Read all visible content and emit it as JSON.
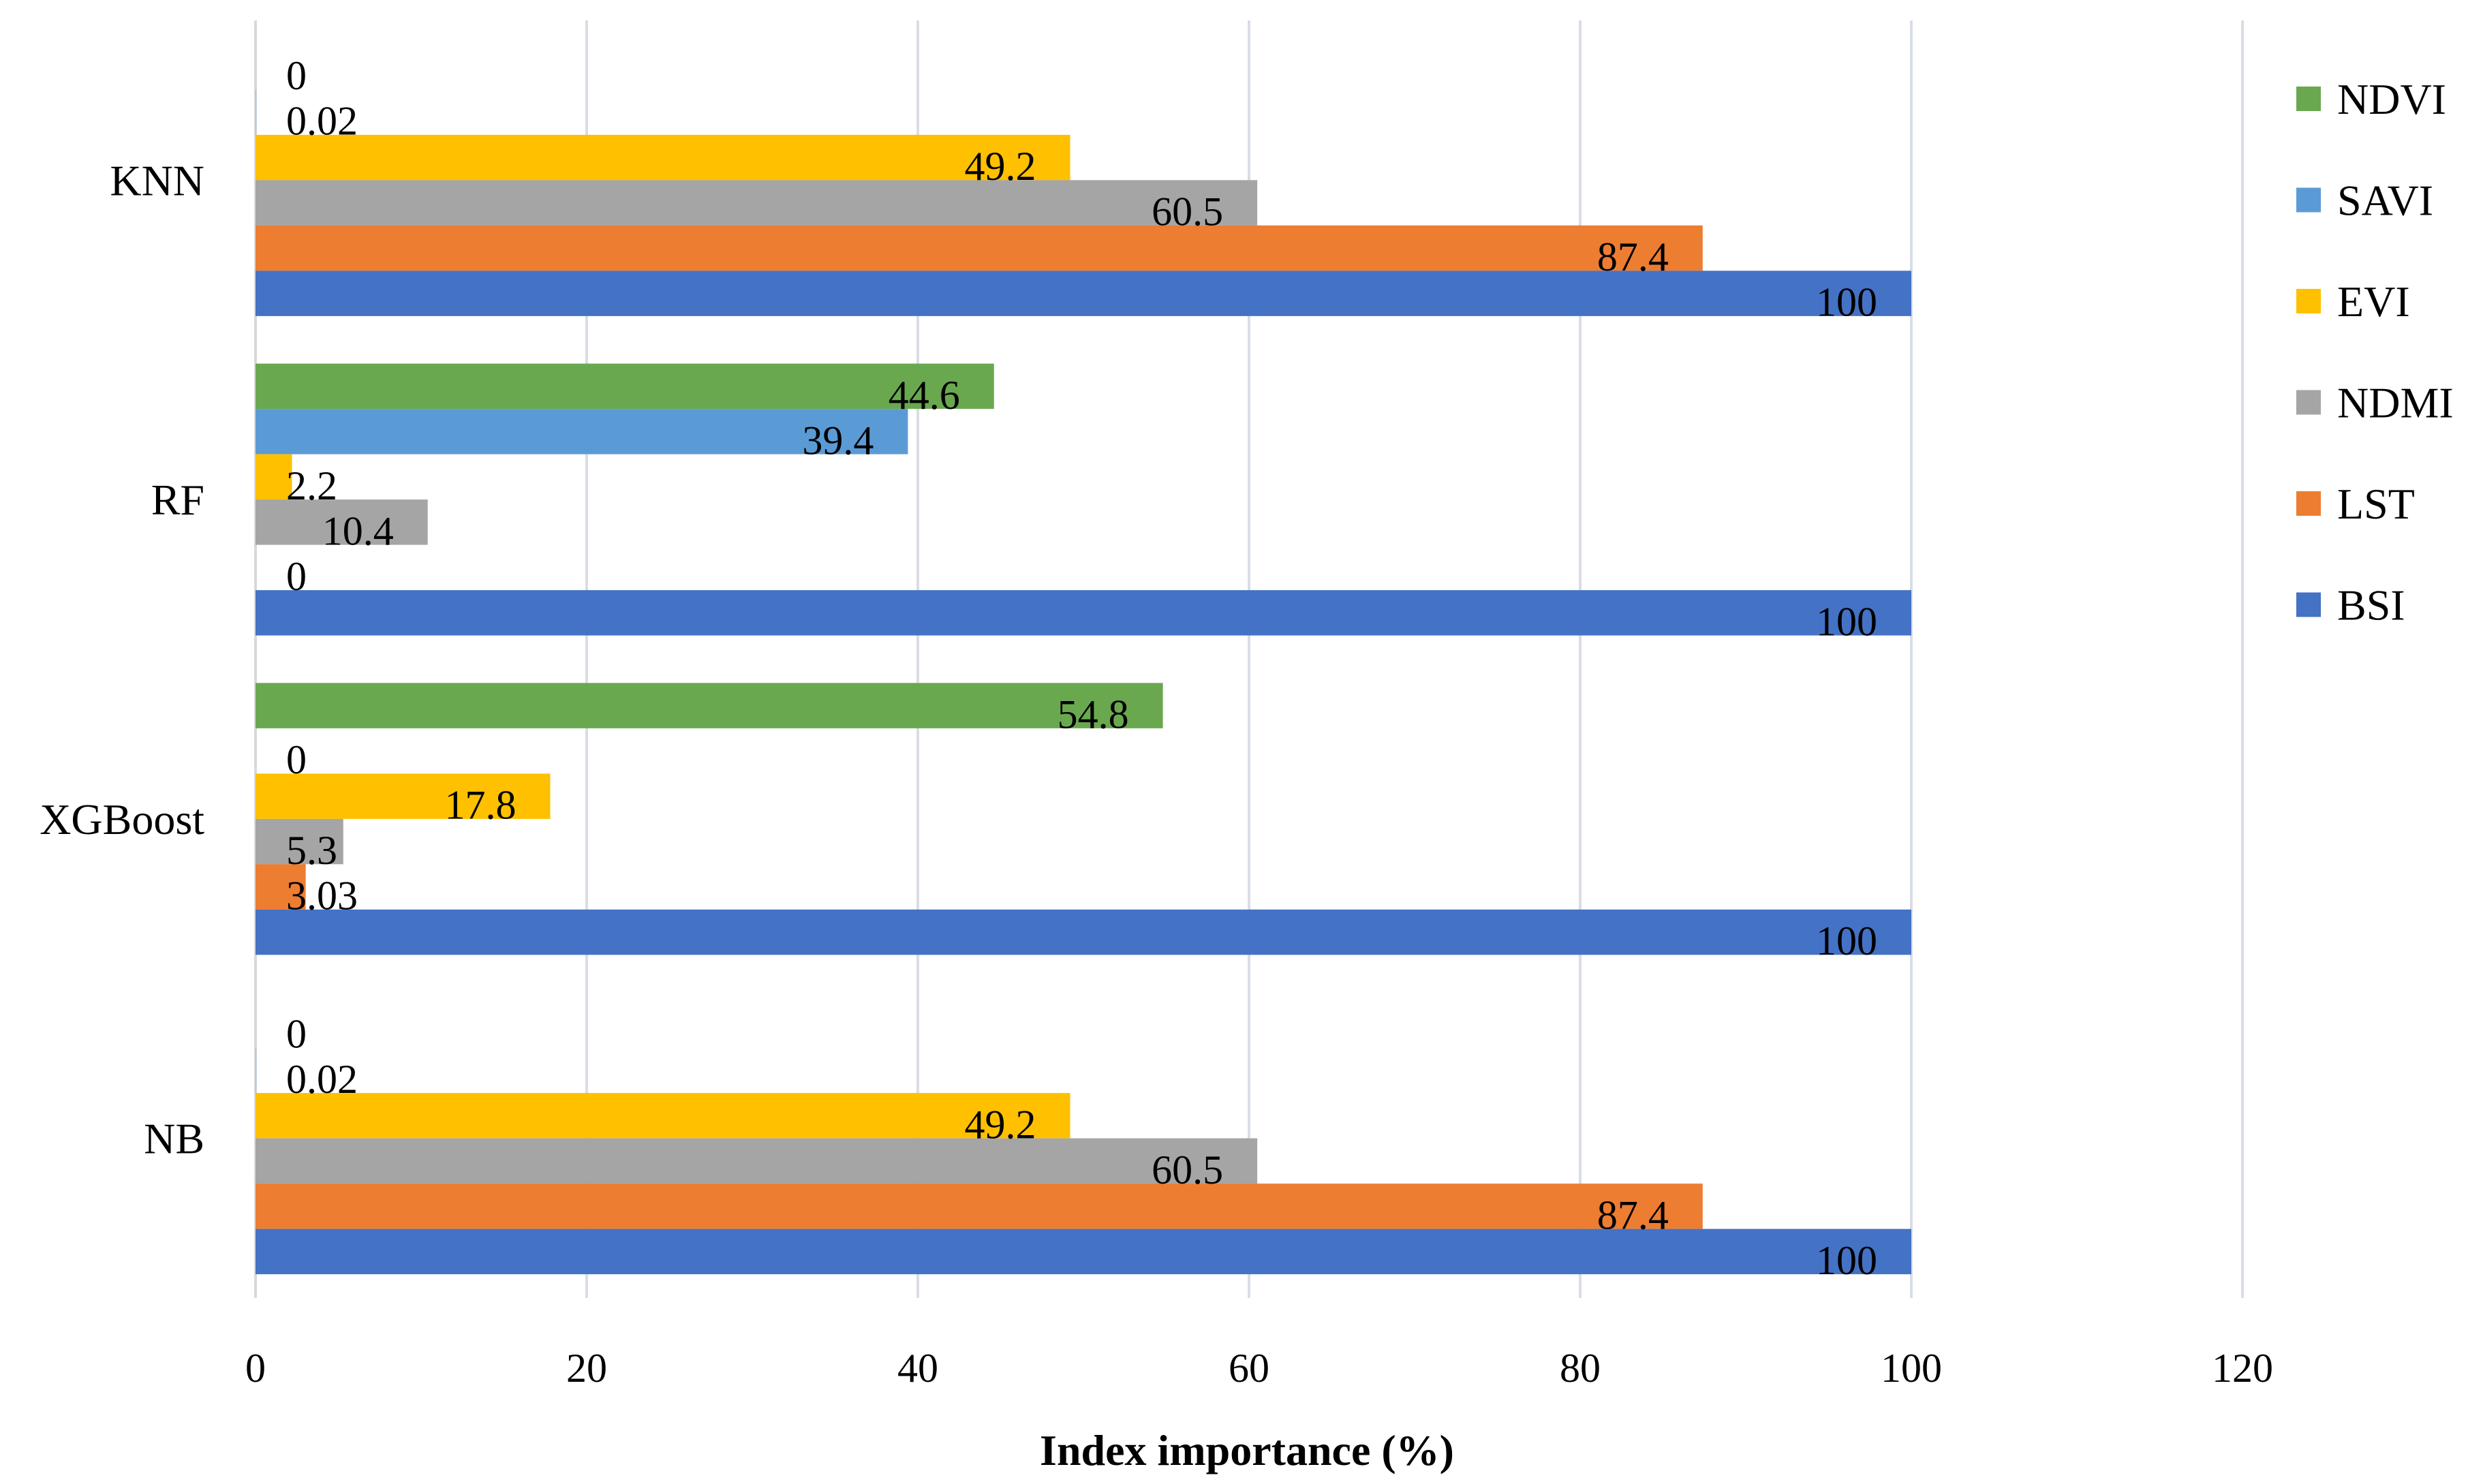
{
  "chart_data": {
    "type": "bar",
    "orientation": "horizontal",
    "title": "",
    "xlabel": "Index importance (%)",
    "ylabel": "",
    "xlim": [
      0,
      120
    ],
    "x_ticks": [
      "0",
      "20",
      "40",
      "60",
      "80",
      "100",
      "120"
    ],
    "grid": "vertical",
    "legend_position": "right",
    "categories": [
      "KNN",
      "RF",
      "XGBoost",
      "NB"
    ],
    "series": [
      {
        "name": "NDVI",
        "color": "#6aa84f",
        "values": [
          0,
          44.6,
          54.8,
          0
        ],
        "labels": [
          "0",
          "44.6",
          "54.8",
          "0"
        ]
      },
      {
        "name": "SAVI",
        "color": "#5b9bd5",
        "values": [
          0.02,
          39.4,
          0,
          0.02
        ],
        "labels": [
          "0.02",
          "39.4",
          "0",
          "0.02"
        ]
      },
      {
        "name": "EVI",
        "color": "#ffc000",
        "values": [
          49.2,
          2.2,
          17.8,
          49.2
        ],
        "labels": [
          "49.2",
          "2.2",
          "17.8",
          "49.2"
        ]
      },
      {
        "name": "NDMI",
        "color": "#a5a5a5",
        "values": [
          60.5,
          10.4,
          5.3,
          60.5
        ],
        "labels": [
          "60.5",
          "10.4",
          "5.3",
          "60.5"
        ]
      },
      {
        "name": "LST",
        "color": "#ed7d31",
        "values": [
          87.4,
          0,
          3.03,
          87.4
        ],
        "labels": [
          "87.4",
          "0",
          "3.03",
          "87.4"
        ]
      },
      {
        "name": "BSI",
        "color": "#4472c4",
        "values": [
          100,
          100,
          100,
          100
        ],
        "labels": [
          "100",
          "100",
          "100",
          "100"
        ]
      }
    ]
  }
}
